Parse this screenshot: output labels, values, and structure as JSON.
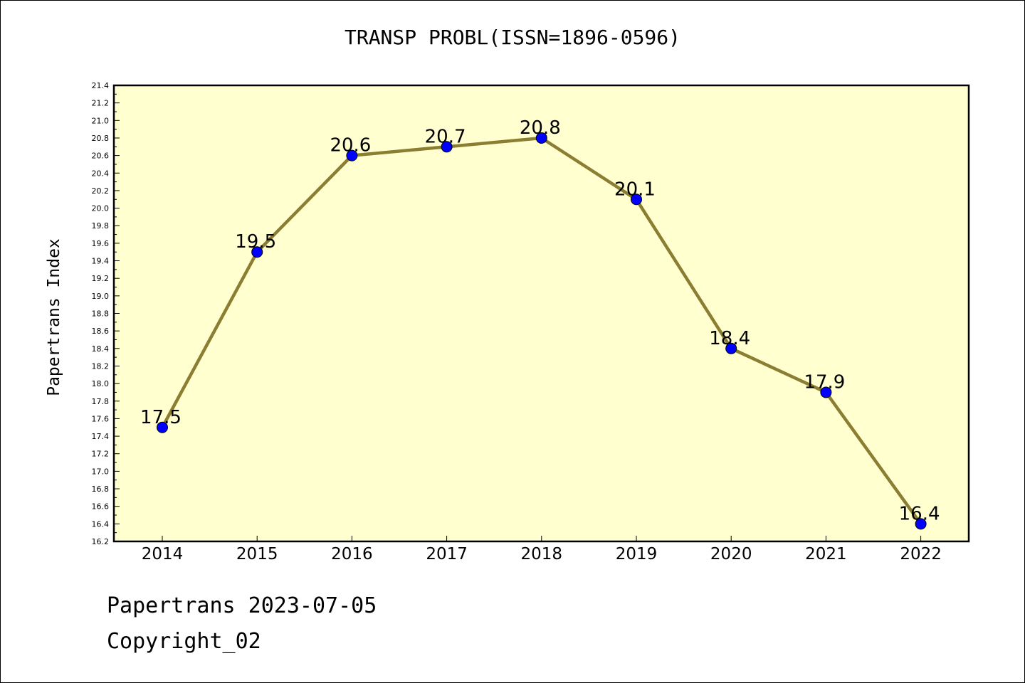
{
  "chart_data": {
    "type": "line",
    "title": "TRANSP PROBL(ISSN=1896-0596)",
    "ylabel": "Papertrans Index",
    "xlabel": "",
    "x": [
      "2014",
      "2015",
      "2016",
      "2017",
      "2018",
      "2019",
      "2020",
      "2021",
      "2022"
    ],
    "series": [
      {
        "values": [
          17.5,
          19.5,
          20.6,
          20.7,
          20.8,
          20.1,
          18.4,
          17.9,
          16.4
        ]
      }
    ],
    "data_labels": [
      "17.5",
      "19.5",
      "20.6",
      "20.7",
      "20.8",
      "20.1",
      "18.4",
      "17.9",
      "16.4"
    ],
    "ylim": [
      16.2,
      21.4
    ],
    "y_ticks": [
      "16.2",
      "16.4",
      "16.6",
      "16.8",
      "17.0",
      "17.2",
      "17.4",
      "17.6",
      "17.8",
      "18.0",
      "18.2",
      "18.4",
      "18.6",
      "18.8",
      "19.0",
      "19.2",
      "19.4",
      "19.6",
      "19.8",
      "20.0",
      "20.2",
      "20.4",
      "20.6",
      "20.8",
      "21.0",
      "21.2",
      "21.4"
    ],
    "grid": false,
    "legend": "none",
    "colors": {
      "plot_background": "#ffffd0",
      "line": "#8b7d32",
      "marker": "#0000ff"
    }
  },
  "footer": {
    "line1": "Papertrans 2023-07-05",
    "line2": "Copyright_02"
  }
}
